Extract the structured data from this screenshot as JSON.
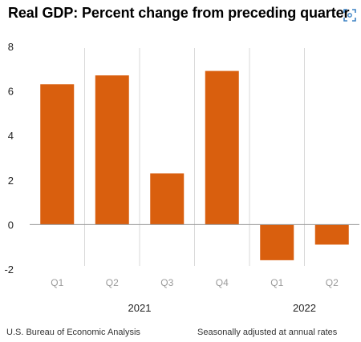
{
  "chart_data": {
    "type": "bar",
    "title": "Real GDP:  Percent change from preceding quarter",
    "categories": [
      "Q1",
      "Q2",
      "Q3",
      "Q4",
      "Q1",
      "Q2"
    ],
    "years": [
      {
        "label": "2021",
        "quarters": [
          0,
          1,
          2,
          3
        ]
      },
      {
        "label": "2022",
        "quarters": [
          4,
          5
        ]
      }
    ],
    "series": [
      {
        "values": [
          6.3,
          6.7,
          2.3,
          6.9,
          -1.6,
          -0.9
        ],
        "color": "#d95f0e"
      }
    ],
    "yticks": [
      "8",
      "6",
      "4",
      "2",
      "0",
      "-2"
    ],
    "ylim": [
      -2,
      8
    ],
    "grid": "vertical dividers between quarters"
  },
  "footer": {
    "source": "U.S. Bureau of Economic Analysis",
    "note": "Seasonally adjusted at annual rates"
  },
  "icons": {
    "corner": "scan-icon"
  }
}
